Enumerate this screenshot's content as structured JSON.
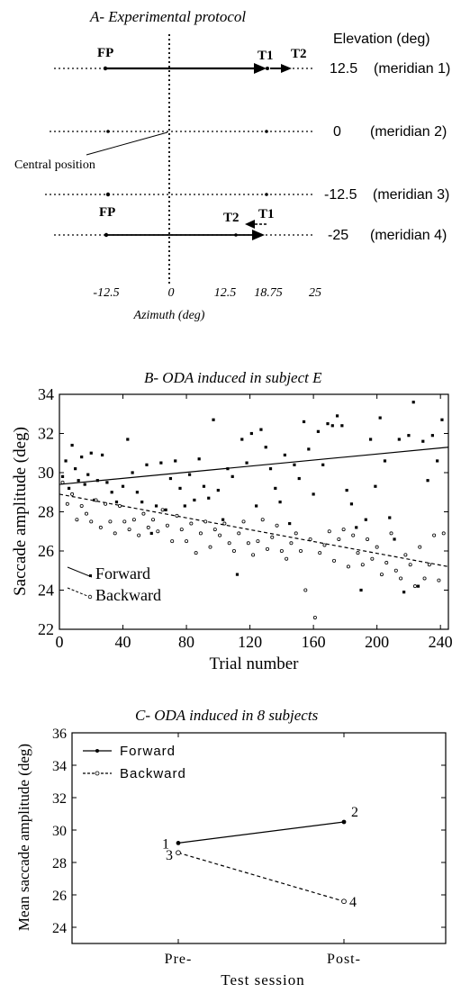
{
  "panel_a": {
    "title": "A- Experimental protocol",
    "elevation_header": "Elevation (deg)",
    "meridians": [
      {
        "elevation": "12.5",
        "name": "(meridian 1)"
      },
      {
        "elevation": "0",
        "name": "(meridian 2)"
      },
      {
        "elevation": "-12.5",
        "name": "(meridian 3)"
      },
      {
        "elevation": "-25",
        "name": "(meridian 4)"
      }
    ],
    "fp_label": "FP",
    "t1_label": "T1",
    "t2_label": "T2",
    "central_position_label": "Central position",
    "azimuth_ticks": [
      "-12.5",
      "0",
      "12.5",
      "18.75",
      "25"
    ],
    "xlabel": "Azimuth (deg)"
  },
  "chart_data": [
    {
      "type": "scatter",
      "title": "B- ODA induced in subject E",
      "xlabel": "Trial number",
      "ylabel": "Saccade amplitude (deg)",
      "xlim": [
        0,
        245
      ],
      "ylim": [
        22,
        34
      ],
      "xticks": [
        "0",
        "40",
        "80",
        "120",
        "160",
        "200",
        "240"
      ],
      "yticks": [
        "22",
        "24",
        "26",
        "28",
        "30",
        "32",
        "34"
      ],
      "grid": false,
      "legend_position": "bottom-left",
      "series": [
        {
          "name": "Forward",
          "marker": "filled-square",
          "fit_line": [
            [
              0,
              29.4
            ],
            [
              245,
              31.3
            ]
          ],
          "points": [
            [
              2,
              29.8
            ],
            [
              4,
              30.6
            ],
            [
              6,
              29.2
            ],
            [
              8,
              31.4
            ],
            [
              10,
              30.2
            ],
            [
              12,
              29.6
            ],
            [
              14,
              30.8
            ],
            [
              16,
              29.4
            ],
            [
              18,
              29.9
            ],
            [
              20,
              31.0
            ],
            [
              22,
              28.6
            ],
            [
              24,
              29.6
            ],
            [
              27,
              30.9
            ],
            [
              30,
              29.5
            ],
            [
              33,
              29.0
            ],
            [
              36,
              28.5
            ],
            [
              40,
              29.3
            ],
            [
              43,
              31.7
            ],
            [
              46,
              30.0
            ],
            [
              49,
              29.0
            ],
            [
              52,
              28.5
            ],
            [
              55,
              30.4
            ],
            [
              58,
              26.9
            ],
            [
              61,
              28.3
            ],
            [
              64,
              30.5
            ],
            [
              67,
              28.1
            ],
            [
              70,
              29.7
            ],
            [
              73,
              30.6
            ],
            [
              76,
              29.2
            ],
            [
              79,
              28.3
            ],
            [
              82,
              29.9
            ],
            [
              85,
              28.6
            ],
            [
              88,
              30.7
            ],
            [
              91,
              29.3
            ],
            [
              94,
              28.7
            ],
            [
              97,
              32.7
            ],
            [
              100,
              29.1
            ],
            [
              103,
              27.6
            ],
            [
              106,
              30.2
            ],
            [
              109,
              29.8
            ],
            [
              112,
              24.8
            ],
            [
              115,
              31.7
            ],
            [
              118,
              30.5
            ],
            [
              121,
              32.0
            ],
            [
              124,
              28.3
            ],
            [
              127,
              32.2
            ],
            [
              130,
              31.3
            ],
            [
              133,
              30.2
            ],
            [
              136,
              29.2
            ],
            [
              139,
              28.5
            ],
            [
              142,
              30.9
            ],
            [
              145,
              27.4
            ],
            [
              148,
              30.4
            ],
            [
              151,
              29.7
            ],
            [
              154,
              32.6
            ],
            [
              157,
              31.2
            ],
            [
              160,
              28.9
            ],
            [
              163,
              32.1
            ],
            [
              166,
              30.4
            ],
            [
              169,
              32.5
            ],
            [
              172,
              32.4
            ],
            [
              175,
              32.9
            ],
            [
              178,
              32.4
            ],
            [
              181,
              29.1
            ],
            [
              184,
              28.4
            ],
            [
              187,
              27.2
            ],
            [
              190,
              24.0
            ],
            [
              193,
              27.6
            ],
            [
              196,
              31.7
            ],
            [
              199,
              29.3
            ],
            [
              202,
              32.8
            ],
            [
              205,
              30.6
            ],
            [
              208,
              27.7
            ],
            [
              211,
              26.6
            ],
            [
              214,
              31.7
            ],
            [
              217,
              23.9
            ],
            [
              220,
              31.9
            ],
            [
              223,
              33.6
            ],
            [
              226,
              24.2
            ],
            [
              229,
              31.6
            ],
            [
              232,
              29.6
            ],
            [
              235,
              31.9
            ],
            [
              238,
              30.6
            ],
            [
              241,
              32.7
            ]
          ]
        },
        {
          "name": "Backward",
          "marker": "open-circle",
          "fit_line": [
            [
              0,
              28.9
            ],
            [
              245,
              25.2
            ]
          ],
          "points": [
            [
              2,
              29.5
            ],
            [
              5,
              28.4
            ],
            [
              8,
              28.9
            ],
            [
              11,
              27.6
            ],
            [
              14,
              28.3
            ],
            [
              17,
              27.9
            ],
            [
              20,
              27.5
            ],
            [
              23,
              28.6
            ],
            [
              26,
              27.2
            ],
            [
              29,
              28.4
            ],
            [
              32,
              27.5
            ],
            [
              35,
              26.9
            ],
            [
              38,
              28.3
            ],
            [
              41,
              27.5
            ],
            [
              44,
              27.1
            ],
            [
              47,
              27.6
            ],
            [
              50,
              26.8
            ],
            [
              53,
              27.9
            ],
            [
              56,
              27.2
            ],
            [
              59,
              27.6
            ],
            [
              62,
              27.0
            ],
            [
              65,
              28.1
            ],
            [
              68,
              27.3
            ],
            [
              71,
              26.5
            ],
            [
              74,
              27.8
            ],
            [
              77,
              27.1
            ],
            [
              80,
              26.5
            ],
            [
              83,
              27.4
            ],
            [
              86,
              25.9
            ],
            [
              89,
              26.9
            ],
            [
              92,
              27.5
            ],
            [
              95,
              26.2
            ],
            [
              98,
              27.1
            ],
            [
              101,
              26.8
            ],
            [
              104,
              27.4
            ],
            [
              107,
              26.4
            ],
            [
              110,
              26.0
            ],
            [
              113,
              26.9
            ],
            [
              116,
              27.5
            ],
            [
              119,
              26.4
            ],
            [
              122,
              25.8
            ],
            [
              125,
              26.5
            ],
            [
              128,
              27.6
            ],
            [
              131,
              26.1
            ],
            [
              134,
              26.7
            ],
            [
              137,
              27.3
            ],
            [
              140,
              26.0
            ],
            [
              143,
              25.6
            ],
            [
              146,
              26.4
            ],
            [
              149,
              26.9
            ],
            [
              152,
              26.0
            ],
            [
              155,
              24.0
            ],
            [
              158,
              26.6
            ],
            [
              161,
              22.6
            ],
            [
              164,
              25.9
            ],
            [
              167,
              26.3
            ],
            [
              170,
              27.0
            ],
            [
              173,
              25.5
            ],
            [
              176,
              26.6
            ],
            [
              179,
              27.1
            ],
            [
              182,
              25.2
            ],
            [
              185,
              26.8
            ],
            [
              188,
              25.9
            ],
            [
              191,
              25.3
            ],
            [
              194,
              26.6
            ],
            [
              197,
              25.6
            ],
            [
              200,
              26.2
            ],
            [
              203,
              24.8
            ],
            [
              206,
              25.4
            ],
            [
              209,
              26.9
            ],
            [
              212,
              25.0
            ],
            [
              215,
              24.6
            ],
            [
              218,
              25.8
            ],
            [
              221,
              25.3
            ],
            [
              224,
              24.2
            ],
            [
              227,
              26.2
            ],
            [
              230,
              24.6
            ],
            [
              233,
              25.3
            ],
            [
              236,
              26.8
            ],
            [
              239,
              24.5
            ],
            [
              242,
              26.9
            ]
          ]
        }
      ],
      "legend": [
        "Forward",
        "Backward"
      ]
    },
    {
      "type": "line",
      "title": "C- ODA induced in 8 subjects",
      "xlabel": "Test session",
      "ylabel": "Mean saccade amplitude (deg)",
      "categories": [
        "Pre-",
        "Post-"
      ],
      "ylim": [
        23,
        36
      ],
      "yticks": [
        "24",
        "26",
        "28",
        "30",
        "32",
        "34",
        "36"
      ],
      "grid": false,
      "legend_position": "top-left",
      "series": [
        {
          "name": "Forward",
          "style": "solid",
          "marker": "filled-dot",
          "values": [
            29.2,
            30.5
          ],
          "point_labels": [
            "1",
            "2"
          ]
        },
        {
          "name": "Backward",
          "style": "dashed",
          "marker": "open-circle",
          "values": [
            28.6,
            25.6
          ],
          "point_labels": [
            "3",
            "4"
          ]
        }
      ]
    }
  ]
}
